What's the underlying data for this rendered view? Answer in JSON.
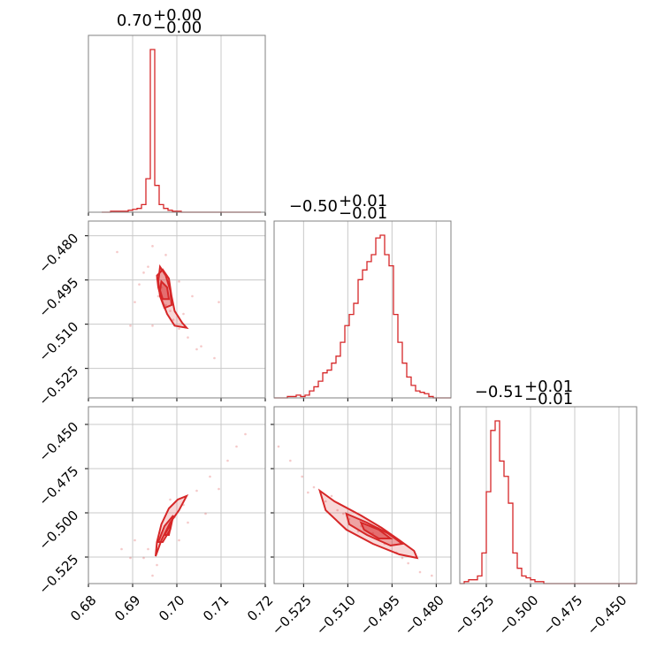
{
  "colors": {
    "accent": "#d62728",
    "grid": "#c8c8c8",
    "frame": "#808080"
  },
  "chart_data": {
    "type": "corner",
    "parameters": [
      {
        "range": [
          0.68,
          0.72
        ],
        "ticks": [
          0.68,
          0.69,
          0.7,
          0.71,
          0.72
        ],
        "tick_labels": [
          "0.68",
          "0.69",
          "0.70",
          "0.71",
          "0.72"
        ],
        "title": {
          "main": "0.70",
          "plus": "+0.00",
          "minus": "−0.00"
        }
      },
      {
        "range": [
          -0.535,
          -0.475
        ],
        "ticks": [
          -0.525,
          -0.51,
          -0.495,
          -0.48
        ],
        "tick_labels": [
          "−0.525",
          "−0.510",
          "−0.495",
          "−0.480"
        ],
        "title": {
          "main": "−0.50",
          "plus": "+0.01",
          "minus": "−0.01"
        }
      },
      {
        "range": [
          -0.54,
          -0.44
        ],
        "ticks": [
          -0.525,
          -0.5,
          -0.475,
          -0.45
        ],
        "tick_labels": [
          "−0.525",
          "−0.500",
          "−0.475",
          "−0.450"
        ],
        "title": {
          "main": "−0.51",
          "plus": "+0.01",
          "minus": "−0.01"
        }
      }
    ],
    "histograms": [
      {
        "parameter": 0,
        "bin_start": 0.683,
        "bin_width": 0.001,
        "counts": [
          0,
          0,
          1,
          1,
          1,
          1,
          2,
          3,
          4,
          8,
          35,
          170,
          28,
          8,
          4,
          2,
          1,
          1,
          0,
          0,
          0,
          0,
          0,
          0,
          0,
          0,
          0,
          0,
          0,
          0,
          0,
          0,
          0,
          0,
          0,
          0
        ]
      },
      {
        "parameter": 1,
        "bin_start": -0.535,
        "bin_width": 0.0015,
        "counts": [
          0,
          0,
          0,
          1,
          1,
          2,
          1,
          2,
          5,
          8,
          12,
          18,
          20,
          25,
          30,
          40,
          52,
          60,
          68,
          85,
          92,
          98,
          103,
          115,
          117,
          103,
          95,
          60,
          40,
          25,
          15,
          9,
          5,
          4,
          3,
          1,
          0,
          0,
          0,
          0
        ]
      },
      {
        "parameter": 2,
        "bin_start": -0.54,
        "bin_width": 0.0025,
        "counts": [
          0,
          1,
          2,
          2,
          4,
          16,
          48,
          80,
          85,
          64,
          56,
          42,
          16,
          8,
          4,
          3,
          2,
          1,
          1,
          0,
          0,
          0,
          0,
          0,
          0,
          0,
          0,
          0,
          0,
          0,
          0,
          0,
          0,
          0,
          0,
          0,
          0,
          0,
          0,
          0
        ]
      }
    ],
    "scatter": [
      {
        "x": 0,
        "y": 1,
        "samples": [
          [
            0.6945,
            -0.4835
          ],
          [
            0.6935,
            -0.4905
          ],
          [
            0.6955,
            -0.4945
          ],
          [
            0.6965,
            -0.4975
          ],
          [
            0.6958,
            -0.5005
          ],
          [
            0.6975,
            -0.5035
          ],
          [
            0.6985,
            -0.5055
          ],
          [
            0.6992,
            -0.5085
          ],
          [
            0.7005,
            -0.5115
          ],
          [
            0.7025,
            -0.5145
          ],
          [
            0.7055,
            -0.5175
          ],
          [
            0.7085,
            -0.5215
          ],
          [
            0.6905,
            -0.5025
          ],
          [
            0.6925,
            -0.4925
          ],
          [
            0.7015,
            -0.5065
          ],
          [
            0.6895,
            -0.5105
          ],
          [
            0.7035,
            -0.5005
          ],
          [
            0.6945,
            -0.5105
          ],
          [
            0.6865,
            -0.4855
          ],
          [
            0.7045,
            -0.5185
          ],
          [
            0.6975,
            -0.4865
          ],
          [
            0.7095,
            -0.5025
          ],
          [
            0.6915,
            -0.4965
          ],
          [
            0.7005,
            -0.4955
          ]
        ],
        "contours": [
          [
            [
              0.6955,
              -0.4935
            ],
            [
              0.6968,
              -0.4915
            ],
            [
              0.6982,
              -0.4945
            ],
            [
              0.6988,
              -0.5005
            ],
            [
              0.6995,
              -0.5055
            ],
            [
              0.7012,
              -0.5095
            ],
            [
              0.7022,
              -0.5112
            ],
            [
              0.6995,
              -0.5105
            ],
            [
              0.6978,
              -0.5065
            ],
            [
              0.6965,
              -0.5015
            ],
            [
              0.6958,
              -0.4975
            ]
          ],
          [
            [
              0.6962,
              -0.4905
            ],
            [
              0.6975,
              -0.4935
            ],
            [
              0.6985,
              -0.4985
            ],
            [
              0.6988,
              -0.5035
            ],
            [
              0.6972,
              -0.5045
            ],
            [
              0.6962,
              -0.5005
            ],
            [
              0.6958,
              -0.4955
            ]
          ],
          [
            [
              0.6965,
              -0.4955
            ],
            [
              0.6978,
              -0.4975
            ],
            [
              0.6982,
              -0.5015
            ],
            [
              0.6968,
              -0.5015
            ],
            [
              0.6962,
              -0.4985
            ]
          ]
        ]
      },
      {
        "x": 0,
        "y": 2,
        "samples": [
          [
            0.6955,
            -0.5295
          ],
          [
            0.6935,
            -0.5205
          ],
          [
            0.6965,
            -0.5115
          ],
          [
            0.6995,
            -0.5025
          ],
          [
            0.7015,
            -0.4955
          ],
          [
            0.7045,
            -0.4875
          ],
          [
            0.7075,
            -0.4795
          ],
          [
            0.7115,
            -0.4705
          ],
          [
            0.7135,
            -0.4625
          ],
          [
            0.6905,
            -0.5155
          ],
          [
            0.6925,
            -0.5255
          ],
          [
            0.7025,
            -0.5055
          ],
          [
            0.6875,
            -0.5205
          ],
          [
            0.6985,
            -0.4925
          ],
          [
            0.7065,
            -0.5005
          ],
          [
            0.6945,
            -0.5355
          ],
          [
            0.7095,
            -0.4865
          ],
          [
            0.7155,
            -0.4555
          ],
          [
            0.6895,
            -0.5255
          ],
          [
            0.7005,
            -0.5155
          ]
        ],
        "contours": [
          [
            [
              0.6952,
              -0.5245
            ],
            [
              0.6965,
              -0.5155
            ],
            [
              0.6985,
              -0.5055
            ],
            [
              0.7005,
              -0.4985
            ],
            [
              0.7022,
              -0.4905
            ],
            [
              0.7002,
              -0.4925
            ],
            [
              0.6982,
              -0.4975
            ],
            [
              0.6965,
              -0.5065
            ],
            [
              0.6955,
              -0.5165
            ]
          ],
          [
            [
              0.6958,
              -0.5165
            ],
            [
              0.6972,
              -0.5075
            ],
            [
              0.6992,
              -0.5015
            ],
            [
              0.6985,
              -0.5095
            ],
            [
              0.6968,
              -0.5165
            ]
          ],
          [
            [
              0.6972,
              -0.5125
            ],
            [
              0.6988,
              -0.5055
            ],
            [
              0.6982,
              -0.5125
            ]
          ]
        ]
      },
      {
        "x": 1,
        "y": 2,
        "samples": [
          [
            -0.5335,
            -0.4625
          ],
          [
            -0.5295,
            -0.4705
          ],
          [
            -0.5255,
            -0.4795
          ],
          [
            -0.5215,
            -0.4855
          ],
          [
            -0.5175,
            -0.4935
          ],
          [
            -0.5135,
            -0.4985
          ],
          [
            -0.5095,
            -0.5035
          ],
          [
            -0.5055,
            -0.5075
          ],
          [
            -0.5015,
            -0.5115
          ],
          [
            -0.4975,
            -0.5175
          ],
          [
            -0.4935,
            -0.5225
          ],
          [
            -0.4895,
            -0.5285
          ],
          [
            -0.4855,
            -0.5335
          ],
          [
            -0.4815,
            -0.5355
          ],
          [
            -0.5155,
            -0.4905
          ],
          [
            -0.5065,
            -0.5105
          ],
          [
            -0.4995,
            -0.5085
          ],
          [
            -0.5235,
            -0.4885
          ],
          [
            -0.4915,
            -0.5255
          ],
          [
            -0.5115,
            -0.5005
          ]
        ],
        "contours": [
          [
            [
              -0.5195,
              -0.4875
            ],
            [
              -0.5145,
              -0.4935
            ],
            [
              -0.5055,
              -0.5015
            ],
            [
              -0.4985,
              -0.5085
            ],
            [
              -0.4925,
              -0.5155
            ],
            [
              -0.4875,
              -0.5215
            ],
            [
              -0.4865,
              -0.5255
            ],
            [
              -0.4925,
              -0.5235
            ],
            [
              -0.5015,
              -0.5175
            ],
            [
              -0.5105,
              -0.5095
            ],
            [
              -0.5175,
              -0.4985
            ]
          ],
          [
            [
              -0.5105,
              -0.5005
            ],
            [
              -0.5035,
              -0.5055
            ],
            [
              -0.4965,
              -0.5115
            ],
            [
              -0.4915,
              -0.5175
            ],
            [
              -0.4955,
              -0.5185
            ],
            [
              -0.5035,
              -0.5125
            ],
            [
              -0.5095,
              -0.5065
            ]
          ],
          [
            [
              -0.5055,
              -0.5055
            ],
            [
              -0.4995,
              -0.5095
            ],
            [
              -0.4955,
              -0.5145
            ],
            [
              -0.4995,
              -0.5145
            ],
            [
              -0.5045,
              -0.5095
            ]
          ]
        ]
      }
    ],
    "grid": true
  }
}
